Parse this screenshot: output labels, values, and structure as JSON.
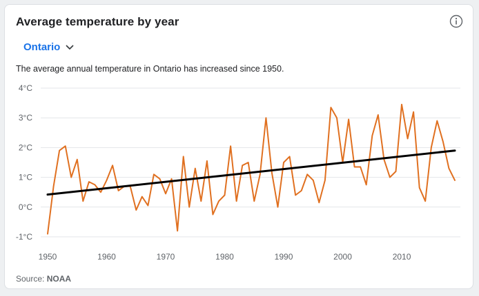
{
  "card": {
    "title": "Average temperature by year",
    "info_icon": "info-icon",
    "region_selector": {
      "value": "Ontario",
      "icon": "chevron-down-icon"
    },
    "description": "The average annual temperature in Ontario has increased since 1950.",
    "source_prefix": "Source: ",
    "source_name": "NOAA"
  },
  "colors": {
    "series": "#e07020",
    "trend": "#000000",
    "grid": "#e3e5e8",
    "accent": "#1a73e8"
  },
  "chart_data": {
    "type": "line",
    "title": "",
    "xlabel": "",
    "ylabel": "",
    "xlim": [
      1950,
      2019
    ],
    "ylim": [
      -1,
      4
    ],
    "x_ticks": [
      1950,
      1960,
      1970,
      1980,
      1990,
      2000,
      2010
    ],
    "x_tick_labels": [
      "1950",
      "1960",
      "1970",
      "1980",
      "1990",
      "2000",
      "2010"
    ],
    "y_ticks": [
      4,
      3,
      2,
      1,
      0,
      -1
    ],
    "y_tick_labels": [
      "4°C",
      "3°C",
      "2°C",
      "1°C",
      "0°C",
      "-1°C"
    ],
    "grid": true,
    "series": [
      {
        "x": [
          1950,
          1951,
          1952,
          1953,
          1954,
          1955,
          1956,
          1957,
          1958,
          1959,
          1960,
          1961,
          1962,
          1963,
          1964,
          1965,
          1966,
          1967,
          1968,
          1969,
          1970,
          1971,
          1972,
          1973,
          1974,
          1975,
          1976,
          1977,
          1978,
          1979,
          1980,
          1981,
          1982,
          1983,
          1984,
          1985,
          1986,
          1987,
          1988,
          1989,
          1990,
          1991,
          1992,
          1993,
          1994,
          1995,
          1996,
          1997,
          1998,
          1999,
          2000,
          2001,
          2002,
          2003,
          2004,
          2005,
          2006,
          2007,
          2008,
          2009,
          2010,
          2011,
          2012,
          2013,
          2014,
          2015,
          2016,
          2017,
          2018,
          2019
        ],
        "values": [
          -0.9,
          0.7,
          1.9,
          2.05,
          1.0,
          1.6,
          0.2,
          0.85,
          0.75,
          0.5,
          0.9,
          1.4,
          0.55,
          0.7,
          0.7,
          -0.1,
          0.35,
          0.05,
          1.1,
          0.95,
          0.45,
          0.95,
          -0.8,
          1.7,
          0.0,
          1.3,
          0.2,
          1.55,
          -0.25,
          0.2,
          0.4,
          2.05,
          0.2,
          1.4,
          1.5,
          0.2,
          1.1,
          3.0,
          1.15,
          0.0,
          1.5,
          1.7,
          0.4,
          0.55,
          1.1,
          0.9,
          0.15,
          0.9,
          3.35,
          3.0,
          1.5,
          2.95,
          1.35,
          1.35,
          0.75,
          2.4,
          3.1,
          1.6,
          1.0,
          1.2,
          3.45,
          2.3,
          3.2,
          0.65,
          0.2,
          2.0,
          2.9,
          2.2,
          1.3,
          0.9
        ],
        "color": "#e07020"
      },
      {
        "x": [
          1950,
          2019
        ],
        "values": [
          0.42,
          1.9
        ],
        "color": "#000000"
      }
    ]
  }
}
